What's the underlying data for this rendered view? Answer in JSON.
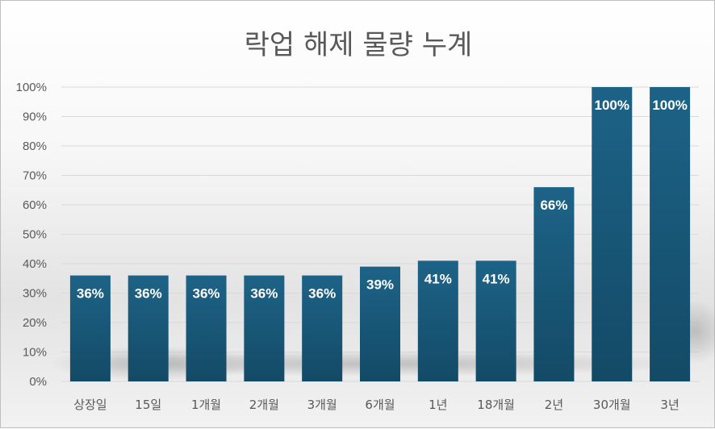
{
  "chart_data": {
    "type": "bar",
    "title": "락업 해제 물량 누계",
    "xlabel": "",
    "ylabel": "",
    "categories": [
      "상장일",
      "15일",
      "1개월",
      "2개월",
      "3개월",
      "6개월",
      "1년",
      "18개월",
      "2년",
      "30개월",
      "3년"
    ],
    "values": [
      36,
      36,
      36,
      36,
      36,
      39,
      41,
      41,
      66,
      100,
      100
    ],
    "data_labels": [
      "36%",
      "36%",
      "36%",
      "36%",
      "36%",
      "39%",
      "41%",
      "41%",
      "66%",
      "100%",
      "100%"
    ],
    "ylim": [
      0,
      100
    ],
    "yticks": [
      "0%",
      "10%",
      "20%",
      "30%",
      "40%",
      "50%",
      "60%",
      "70%",
      "80%",
      "90%",
      "100%"
    ],
    "grid": true,
    "legend": "none",
    "bar_color": "#1b5e80"
  }
}
